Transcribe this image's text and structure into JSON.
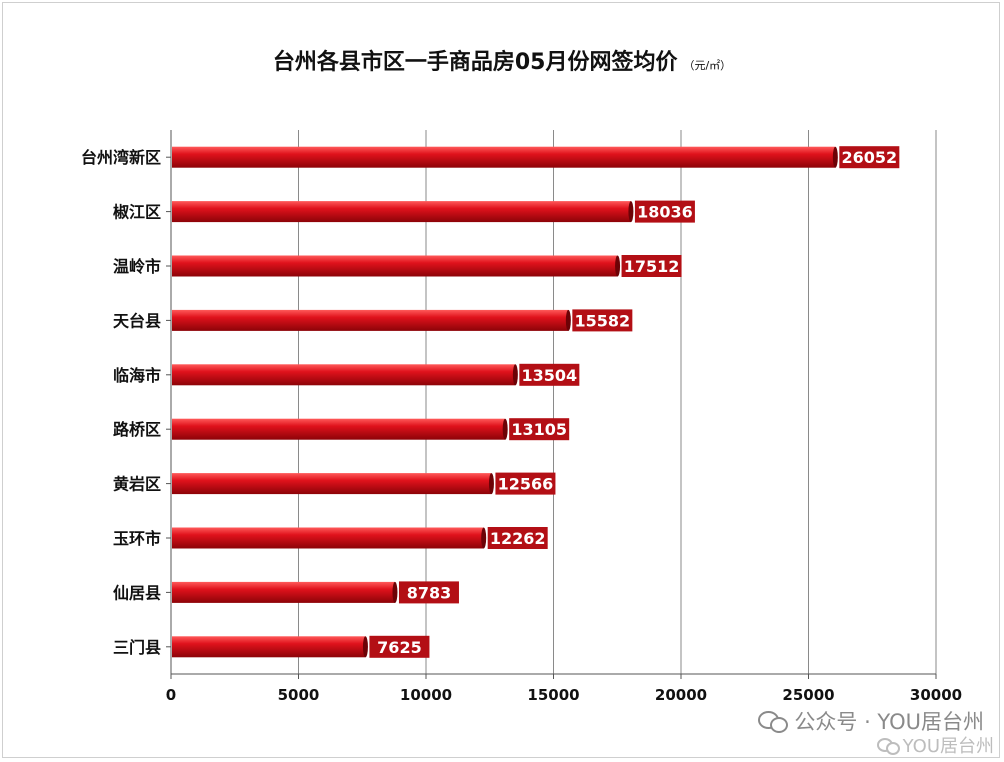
{
  "chart_data": {
    "type": "bar",
    "orientation": "horizontal",
    "title": "台州各县市区一手商品房05月份网签均价",
    "unit": "（元/㎡）",
    "categories": [
      "台州湾新区",
      "椒江区",
      "温岭市",
      "天台县",
      "临海市",
      "路桥区",
      "黄岩区",
      "玉环市",
      "仙居县",
      "三门县"
    ],
    "values": [
      26052,
      18036,
      17512,
      15582,
      13504,
      13105,
      12566,
      12262,
      8783,
      7625
    ],
    "xlim": [
      0,
      30000
    ],
    "xticks": [
      0,
      5000,
      10000,
      15000,
      20000,
      25000,
      30000
    ],
    "grid": true,
    "data_labels": true,
    "bar_color": "#c8101a",
    "label_bg": "#b30f15"
  },
  "watermark": {
    "line1": "公众号 · YOU居台州",
    "line2": "YOU居台州"
  }
}
